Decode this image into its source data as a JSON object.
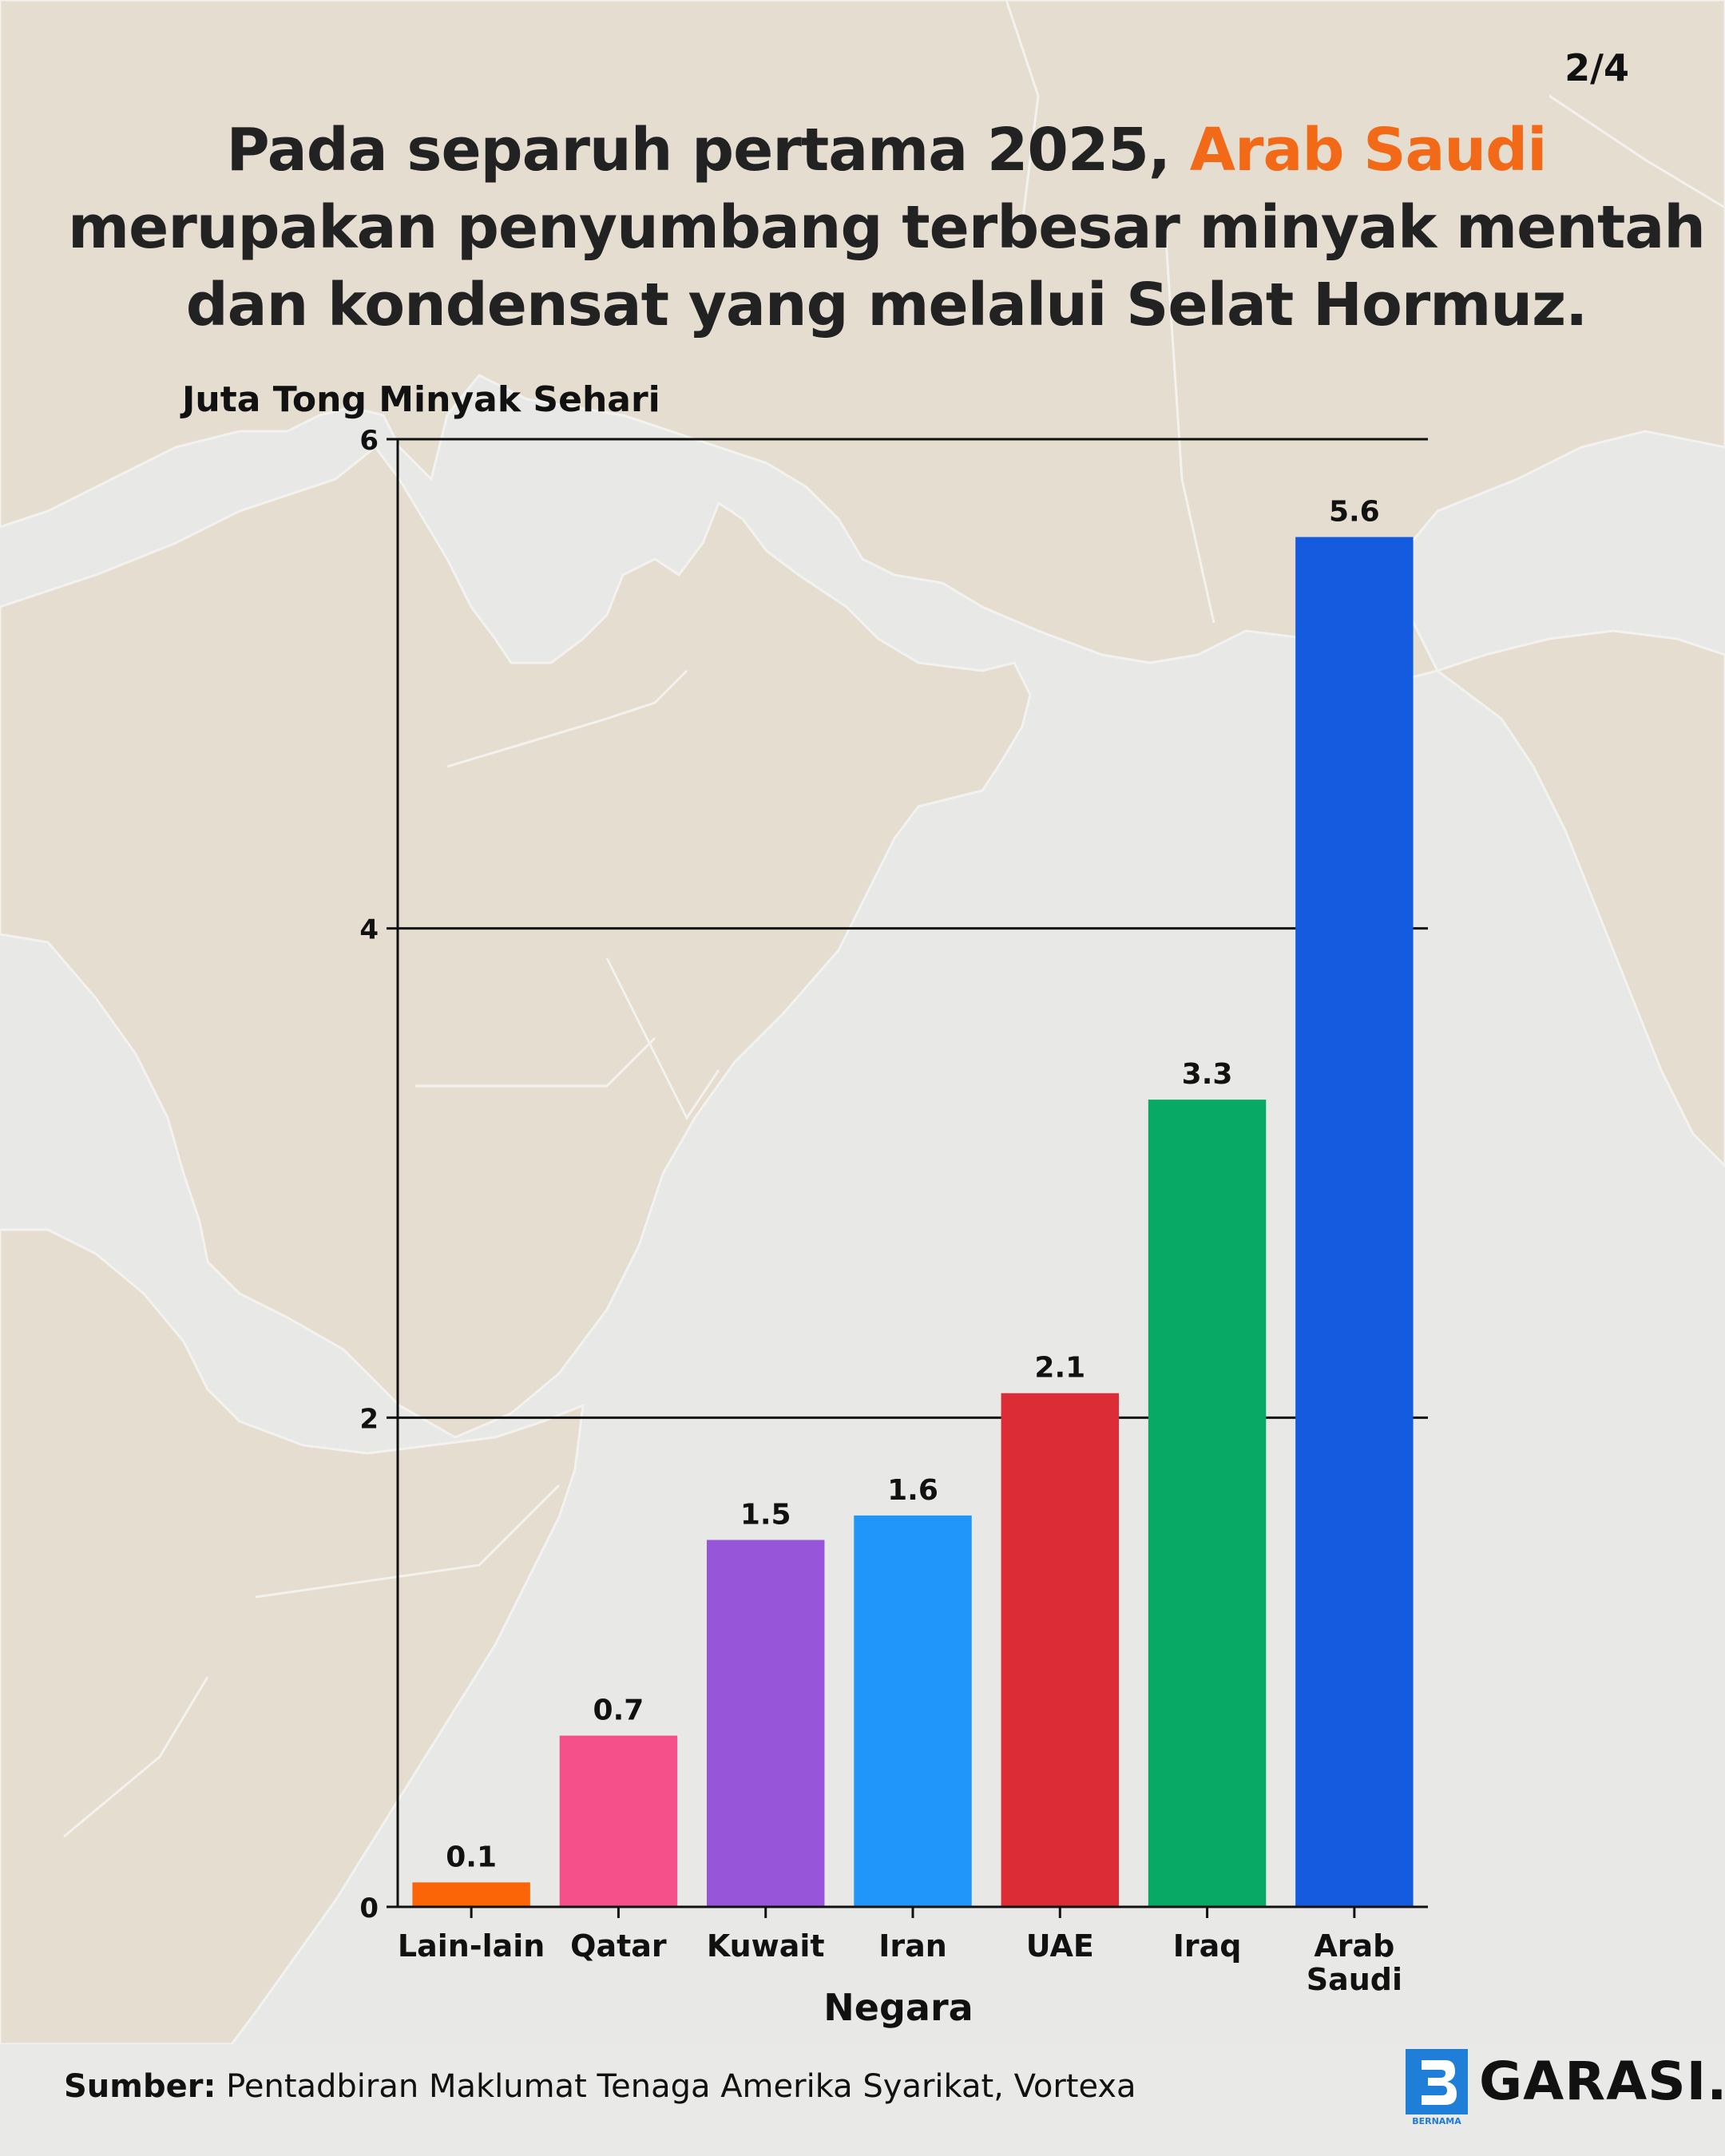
{
  "page_indicator": "2/4",
  "headline": {
    "line1_pre": "Pada separuh pertama 2025, ",
    "line1_highlight": "Arab Saudi",
    "line2": "merupakan penyumbang terbesar minyak mentah",
    "line3": "dan kondensat yang melalui Selat Hormuz."
  },
  "colors": {
    "highlight": "#f26a17",
    "land": "#e4ddd0",
    "sea": "#e8e8e7"
  },
  "chart_data": {
    "type": "bar",
    "xlabel": "Negara",
    "ylabel": "Juta Tong Minyak Sehari",
    "ylim": [
      0,
      6
    ],
    "yticks": [
      0,
      2,
      4,
      6
    ],
    "grid": "horizontal",
    "categories": [
      {
        "label_lines": [
          "Lain-lain"
        ]
      },
      {
        "label_lines": [
          "Qatar"
        ]
      },
      {
        "label_lines": [
          "Kuwait"
        ]
      },
      {
        "label_lines": [
          "Iran"
        ]
      },
      {
        "label_lines": [
          "UAE"
        ]
      },
      {
        "label_lines": [
          "Iraq"
        ]
      },
      {
        "label_lines": [
          "Arab",
          "Saudi"
        ]
      }
    ],
    "values": [
      0.1,
      0.7,
      1.5,
      1.6,
      2.1,
      3.3,
      5.6
    ],
    "value_labels": [
      "0.1",
      "0.7",
      "1.5",
      "1.6",
      "2.1",
      "3.3",
      "5.6"
    ],
    "bar_colors": [
      "#fb6407",
      "#f5508a",
      "#9756da",
      "#2196fa",
      "#dc2c36",
      "#08a965",
      "#145bdf"
    ]
  },
  "footer": {
    "source_label": "Sumber:",
    "source_text": " Pentadbiran Maklumat Tenaga Amerika Syarikat, Vortexa",
    "brand_name": "GARASI.",
    "brand_sub": "BERNAMA",
    "brand_icon": "bernama-logo-icon"
  }
}
